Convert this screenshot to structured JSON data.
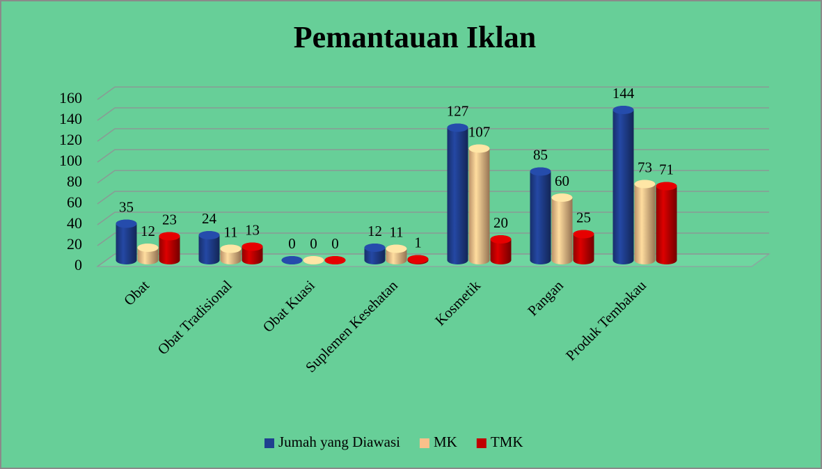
{
  "chart_data": {
    "type": "bar3d",
    "title": "Pemantauan Iklan",
    "categories": [
      "Obat",
      "Obat Tradisional",
      "Obat Kuasi",
      "Suplemen Kesehatan",
      "Kosmetik",
      "Pangan",
      "Produk Tembakau"
    ],
    "series": [
      {
        "name": "Jumah yang Diawasi",
        "color": "#1f3f8f",
        "values": [
          35,
          24,
          0,
          12,
          127,
          85,
          144
        ]
      },
      {
        "name": "MK",
        "color": "#f8c08a",
        "values": [
          12,
          11,
          0,
          11,
          107,
          60,
          73
        ]
      },
      {
        "name": "TMK",
        "color": "#c00000",
        "values": [
          23,
          13,
          0,
          1,
          20,
          25,
          71
        ]
      }
    ],
    "ylim": [
      0,
      160
    ],
    "yticks": [
      0,
      20,
      40,
      60,
      80,
      100,
      120,
      140,
      160
    ],
    "grid": true,
    "legend": "bottom"
  }
}
